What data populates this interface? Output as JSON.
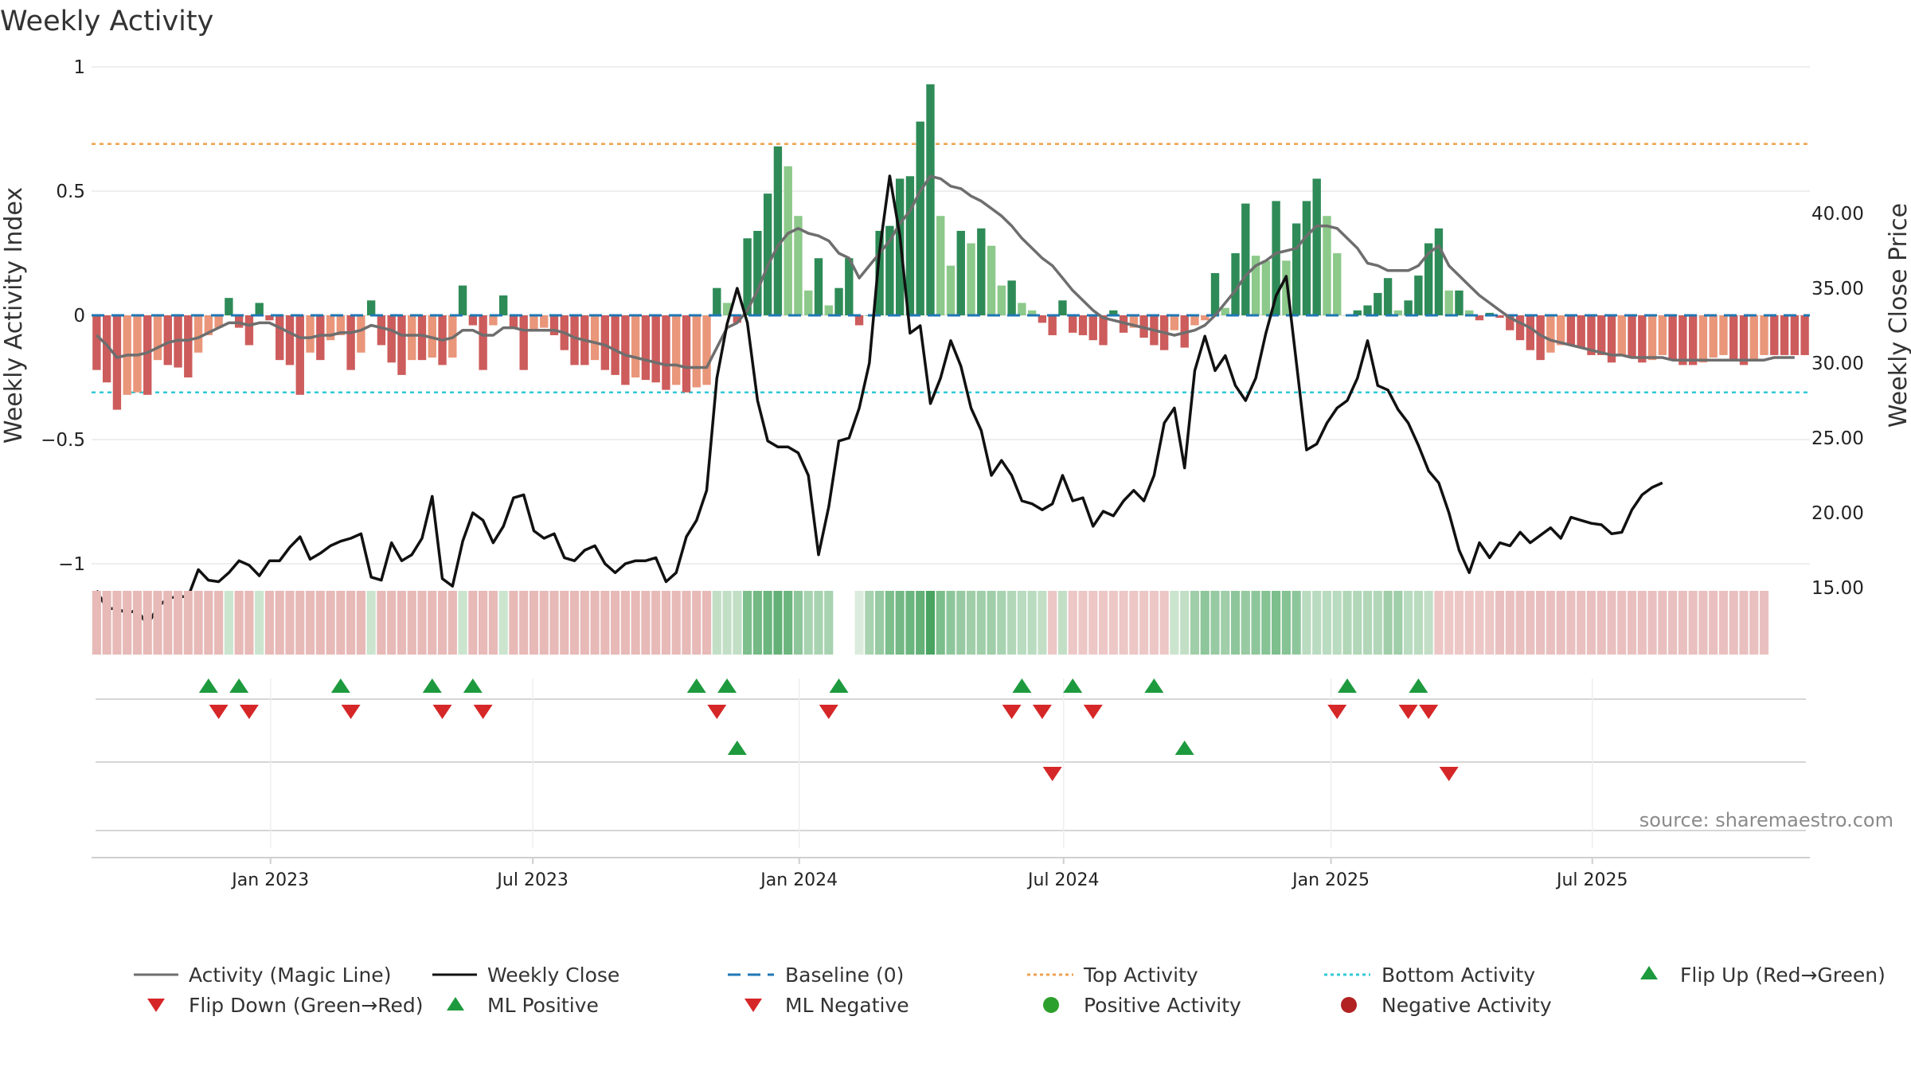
{
  "colors": {
    "strong_green": "#2e8b57",
    "light_green": "#8cc98a",
    "strong_red": "#cd5c5c",
    "light_red": "#e9967a",
    "magic_line": "#6e6e6e",
    "close_line": "#111111",
    "baseline": "#1f77b4",
    "top": "#f0a050",
    "bottom": "#30c8d8",
    "flip_up": "#1e9a3e",
    "flip_down": "#d62728",
    "pos_dot": "#2ca02c",
    "neg_dot": "#b22222"
  },
  "chart_data": {
    "type": "bar",
    "title": "Weekly Activity",
    "ylabel": "Weekly Activity Index",
    "y2label": "Weekly Close Price",
    "ylim": [
      -1,
      1
    ],
    "y2lim": [
      10,
      43
    ],
    "yticks": [
      {
        "v": 1,
        "label": "1"
      },
      {
        "v": 0.5,
        "label": "0.5"
      },
      {
        "v": 0,
        "label": "0"
      },
      {
        "v": -0.5,
        "label": "−0.5"
      },
      {
        "v": -1,
        "label": "−1"
      }
    ],
    "y2ticks": [
      {
        "v": 40,
        "label": "40.00"
      },
      {
        "v": 35,
        "label": "35.00"
      },
      {
        "v": 30,
        "label": "30.00"
      },
      {
        "v": 25,
        "label": "25.00"
      },
      {
        "v": 20,
        "label": "20.00"
      },
      {
        "v": 15,
        "label": "15.00"
      }
    ],
    "top_activity": 0.69,
    "bottom_activity": -0.31,
    "start_week": 0,
    "xticks": [
      {
        "week": 17.6,
        "label": "Jan 2023"
      },
      {
        "week": 43.4,
        "label": "Jul 2023"
      },
      {
        "week": 69.6,
        "label": "Jan 2024"
      },
      {
        "week": 95.6,
        "label": "Jul 2024"
      },
      {
        "week": 121.9,
        "label": "Jan 2025"
      },
      {
        "week": 147.6,
        "label": "Jul 2025"
      }
    ],
    "activity": [
      -0.22,
      -0.27,
      -0.38,
      -0.32,
      -0.31,
      -0.32,
      -0.18,
      -0.2,
      -0.21,
      -0.25,
      -0.15,
      -0.08,
      -0.05,
      0.07,
      -0.05,
      -0.12,
      0.05,
      -0.02,
      -0.18,
      -0.2,
      -0.32,
      -0.15,
      -0.18,
      -0.1,
      -0.08,
      -0.22,
      -0.15,
      0.06,
      -0.12,
      -0.19,
      -0.24,
      -0.18,
      -0.18,
      -0.17,
      -0.2,
      -0.17,
      0.12,
      -0.04,
      -0.22,
      -0.04,
      0.08,
      -0.05,
      -0.22,
      -0.06,
      -0.05,
      -0.08,
      -0.14,
      -0.2,
      -0.2,
      -0.18,
      -0.22,
      -0.24,
      -0.28,
      -0.25,
      -0.26,
      -0.27,
      -0.3,
      -0.28,
      -0.31,
      -0.29,
      -0.28,
      0.11,
      0.05,
      -0.03,
      0.31,
      0.34,
      0.49,
      0.68,
      0.6,
      0.4,
      0.1,
      0.23,
      0.04,
      0.11,
      0.23,
      -0.04,
      0.0,
      0.34,
      0.36,
      0.55,
      0.56,
      0.78,
      0.93,
      0.4,
      0.2,
      0.34,
      0.29,
      0.35,
      0.28,
      0.12,
      0.14,
      0.05,
      0.02,
      -0.03,
      -0.08,
      0.06,
      -0.07,
      -0.08,
      -0.1,
      -0.12,
      0.02,
      -0.07,
      -0.05,
      -0.09,
      -0.12,
      -0.14,
      -0.06,
      -0.13,
      -0.04,
      -0.02,
      0.17,
      0.03,
      0.25,
      0.45,
      0.24,
      0.22,
      0.46,
      0.22,
      0.37,
      0.46,
      0.55,
      0.4,
      0.25,
      0.0,
      0.02,
      0.04,
      0.09,
      0.15,
      0.02,
      0.06,
      0.16,
      0.29,
      0.35,
      0.1,
      0.1,
      0.02,
      -0.02,
      0.01,
      -0.01,
      -0.06,
      -0.1,
      -0.14,
      -0.18,
      -0.15,
      -0.12,
      -0.12,
      -0.13,
      -0.16,
      -0.16,
      -0.19,
      -0.16,
      -0.17,
      -0.19,
      -0.18,
      -0.16,
      -0.18,
      -0.2,
      -0.2,
      -0.19,
      -0.17,
      -0.16,
      -0.18,
      -0.2,
      -0.18,
      -0.16,
      -0.16,
      -0.16,
      -0.16,
      -0.16
    ],
    "magic_line": [
      -0.08,
      -0.12,
      -0.17,
      -0.16,
      -0.16,
      -0.15,
      -0.13,
      -0.11,
      -0.1,
      -0.1,
      -0.09,
      -0.07,
      -0.05,
      -0.03,
      -0.03,
      -0.04,
      -0.03,
      -0.03,
      -0.05,
      -0.07,
      -0.09,
      -0.09,
      -0.08,
      -0.08,
      -0.07,
      -0.07,
      -0.06,
      -0.04,
      -0.05,
      -0.06,
      -0.08,
      -0.08,
      -0.08,
      -0.09,
      -0.1,
      -0.09,
      -0.06,
      -0.06,
      -0.08,
      -0.08,
      -0.05,
      -0.05,
      -0.06,
      -0.06,
      -0.06,
      -0.06,
      -0.07,
      -0.09,
      -0.1,
      -0.11,
      -0.12,
      -0.14,
      -0.16,
      -0.17,
      -0.18,
      -0.19,
      -0.2,
      -0.2,
      -0.21,
      -0.21,
      -0.21,
      -0.13,
      -0.05,
      -0.03,
      0.02,
      0.1,
      0.2,
      0.28,
      0.33,
      0.35,
      0.33,
      0.32,
      0.3,
      0.25,
      0.23,
      0.15,
      0.2,
      0.25,
      0.3,
      0.37,
      0.42,
      0.5,
      0.56,
      0.55,
      0.52,
      0.51,
      0.48,
      0.46,
      0.43,
      0.4,
      0.36,
      0.31,
      0.27,
      0.23,
      0.2,
      0.15,
      0.1,
      0.06,
      0.02,
      -0.01,
      -0.02,
      -0.03,
      -0.04,
      -0.05,
      -0.06,
      -0.07,
      -0.08,
      -0.07,
      -0.06,
      -0.04,
      0.0,
      0.05,
      0.1,
      0.16,
      0.2,
      0.22,
      0.25,
      0.26,
      0.27,
      0.32,
      0.36,
      0.36,
      0.35,
      0.31,
      0.27,
      0.21,
      0.2,
      0.18,
      0.18,
      0.18,
      0.2,
      0.25,
      0.28,
      0.2,
      0.16,
      0.12,
      0.08,
      0.05,
      0.02,
      -0.01,
      -0.03,
      -0.05,
      -0.08,
      -0.1,
      -0.11,
      -0.12,
      -0.13,
      -0.14,
      -0.15,
      -0.16,
      -0.16,
      -0.17,
      -0.17,
      -0.17,
      -0.17,
      -0.18,
      -0.18,
      -0.18,
      -0.18,
      -0.18,
      -0.18,
      -0.18,
      -0.18,
      -0.18,
      -0.18,
      -0.17,
      -0.17,
      -0.17
    ],
    "weekly_close": [
      14.8,
      13.6,
      13.6,
      13.3,
      13.5,
      12.5,
      13.7,
      14.3,
      14.4,
      14.4,
      16.2,
      15.5,
      15.4,
      16.0,
      16.8,
      16.5,
      15.8,
      16.8,
      16.8,
      17.7,
      18.4,
      16.9,
      17.3,
      17.8,
      18.1,
      18.3,
      18.6,
      15.7,
      15.5,
      18.0,
      16.8,
      17.2,
      18.3,
      21.1,
      15.6,
      15.1,
      18.1,
      20.0,
      19.5,
      18.0,
      19.1,
      21.0,
      21.2,
      18.8,
      18.3,
      18.6,
      17.0,
      16.8,
      17.5,
      17.8,
      16.6,
      16.0,
      16.6,
      16.8,
      16.8,
      17.0,
      15.4,
      16.0,
      18.4,
      19.5,
      21.5,
      29.0,
      32.6,
      35.0,
      32.7,
      27.5,
      24.8,
      24.4,
      24.4,
      24.0,
      22.5,
      17.2,
      20.4,
      24.8,
      25.0,
      27.0,
      30.0,
      37.5,
      42.5,
      38.5,
      32.0,
      32.5,
      27.3,
      29.0,
      31.5,
      29.8,
      27.0,
      25.5,
      22.5,
      23.5,
      22.5,
      20.8,
      20.6,
      20.2,
      20.6,
      22.5,
      20.8,
      21.0,
      19.1,
      20.1,
      19.8,
      20.8,
      21.5,
      20.8,
      22.5,
      26.0,
      27.0,
      23.0,
      29.5,
      31.8,
      29.5,
      30.5,
      28.5,
      27.5,
      29.0,
      32.0,
      34.5,
      35.8,
      30.0,
      24.2,
      24.6,
      26.0,
      27.0,
      27.5,
      29.0,
      31.5,
      28.5,
      28.2,
      26.9,
      26.0,
      24.5,
      22.8,
      22.0,
      20.0,
      17.5,
      16.0,
      18.0,
      17.0,
      18.0,
      17.8,
      18.7,
      18.0,
      18.5,
      19.0,
      18.3,
      19.7,
      19.5,
      19.3,
      19.2,
      18.6,
      18.7,
      20.2,
      21.2,
      21.7,
      22.0
    ]
  },
  "signal_strip": {
    "heat": [
      -0.3,
      -0.3,
      -0.3,
      -0.3,
      -0.3,
      -0.3,
      -0.3,
      -0.3,
      -0.3,
      -0.3,
      -0.3,
      -0.3,
      -0.3,
      0.1,
      -0.3,
      -0.3,
      0.1,
      -0.3,
      -0.3,
      -0.3,
      -0.3,
      -0.3,
      -0.3,
      -0.3,
      -0.3,
      -0.3,
      -0.3,
      0.1,
      -0.3,
      -0.3,
      -0.3,
      -0.3,
      -0.3,
      -0.3,
      -0.3,
      -0.3,
      0.1,
      -0.3,
      -0.3,
      -0.3,
      0.1,
      -0.3,
      -0.3,
      -0.3,
      -0.3,
      -0.3,
      -0.3,
      -0.3,
      -0.3,
      -0.3,
      -0.3,
      -0.3,
      -0.3,
      -0.3,
      -0.3,
      -0.3,
      -0.3,
      -0.3,
      -0.3,
      -0.3,
      -0.3,
      0.15,
      0.15,
      0.15,
      0.55,
      0.6,
      0.65,
      0.7,
      0.65,
      0.45,
      0.3,
      0.3,
      0.3,
      0.3,
      0.3,
      0.0,
      0.3,
      0.4,
      0.55,
      0.6,
      0.65,
      0.7,
      0.85,
      0.55,
      0.45,
      0.4,
      0.35,
      0.35,
      0.35,
      0.3,
      0.25,
      0.2,
      0.2,
      0.15,
      -0.2,
      0.15,
      -0.2,
      -0.2,
      -0.2,
      -0.2,
      -0.2,
      -0.2,
      -0.2,
      -0.2,
      -0.2,
      -0.2,
      0.1,
      0.15,
      0.35,
      0.45,
      0.4,
      0.35,
      0.45,
      0.4,
      0.45,
      0.5,
      0.55,
      0.5,
      0.45,
      0.2,
      0.2,
      0.2,
      0.2,
      0.25,
      0.25,
      0.25,
      0.25,
      0.35,
      0.35,
      0.2,
      0.2,
      0.15,
      -0.2,
      -0.2,
      -0.2,
      -0.2,
      -0.2,
      -0.2,
      -0.25,
      -0.25,
      -0.25,
      -0.25,
      -0.25,
      -0.25,
      -0.25,
      -0.25,
      -0.25,
      -0.25,
      -0.25,
      -0.25,
      -0.25,
      -0.25,
      -0.25,
      -0.25,
      -0.25,
      -0.25,
      -0.25,
      -0.25,
      -0.25,
      -0.25,
      -0.25,
      -0.25,
      -0.25,
      -0.25,
      -0.25
    ],
    "gaps": [
      73,
      74
    ]
  },
  "markers": {
    "flip_up": [
      11.5,
      14.5,
      24.5,
      33.5,
      37.5,
      59.5,
      62.5,
      73.5,
      91.5,
      96.5,
      104.5,
      123.5,
      130.5
    ],
    "flip_down": [
      12.5,
      15.5,
      25.5,
      34.5,
      38.5,
      61.5,
      72.5,
      90.5,
      93.5,
      98.5,
      122.5,
      129.5,
      131.5
    ],
    "ml_positive": [
      63.5,
      107.5
    ],
    "ml_negative": [
      94.5,
      133.5
    ]
  },
  "legend": {
    "magic_line": "Activity (Magic Line)",
    "weekly_close": "Weekly Close",
    "baseline": "Baseline (0)",
    "top_activity": "Top Activity",
    "bottom_activity": "Bottom Activity",
    "flip_up": "Flip Up (Red→Green)",
    "flip_down": "Flip Down (Green→Red)",
    "ml_positive": "ML Positive",
    "ml_negative": "ML Negative",
    "positive_activity": "Positive Activity",
    "negative_activity": "Negative Activity"
  },
  "source": "source: sharemaestro.com"
}
